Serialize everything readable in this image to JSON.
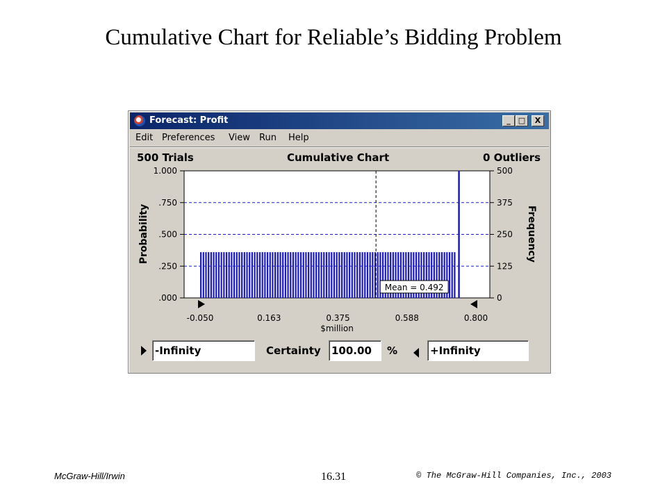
{
  "slide": {
    "title": "Cumulative Chart for Reliable’s Bidding Problem",
    "footer_left": "McGraw-Hill/Irwin",
    "footer_center": "16.31",
    "footer_right": "© The McGraw-Hill Companies, Inc., 2003"
  },
  "window": {
    "title": "Forecast: Profit",
    "buttons": {
      "minimize": "_",
      "maximize": "□",
      "close": "X"
    }
  },
  "menu": [
    "Edit",
    "Preferences",
    "View",
    "Run",
    "Help"
  ],
  "header": {
    "trials": "500 Trials",
    "chart_name": "Cumulative Chart",
    "outliers": "0 Outliers"
  },
  "colors": {
    "bar": "#1a1acc",
    "titlebar": "#0a246a",
    "window_bg": "#d4d0c8"
  },
  "chart_data": {
    "type": "bar",
    "xlabel": "$million",
    "ylabel": "Probability",
    "y2label": "Frequency",
    "x_ticks": [
      "-0.050",
      "0.163",
      "0.375",
      "0.588",
      "0.800"
    ],
    "xlim": [
      -0.05,
      0.8
    ],
    "y_ticks": [
      "1.000",
      ".750",
      ".500",
      ".250",
      ".000"
    ],
    "ylim": [
      0,
      1
    ],
    "y2_ticks": [
      "500",
      "375",
      "250",
      "125",
      "0"
    ],
    "y2lim": [
      0,
      500
    ],
    "bars": {
      "x_start": -0.05,
      "x_end": 0.74,
      "probability": 0.36,
      "count": 100
    },
    "spike": {
      "x": 0.745,
      "probability": 1.0
    },
    "mean_line": {
      "x": 0.492,
      "label": "Mean = 0.492"
    },
    "gridlines_y": [
      0.25,
      0.5,
      0.75
    ]
  },
  "certainty": {
    "lower": "-Infinity",
    "label": "Certainty",
    "value": "100.00",
    "unit": "%",
    "upper": "+Infinity"
  }
}
